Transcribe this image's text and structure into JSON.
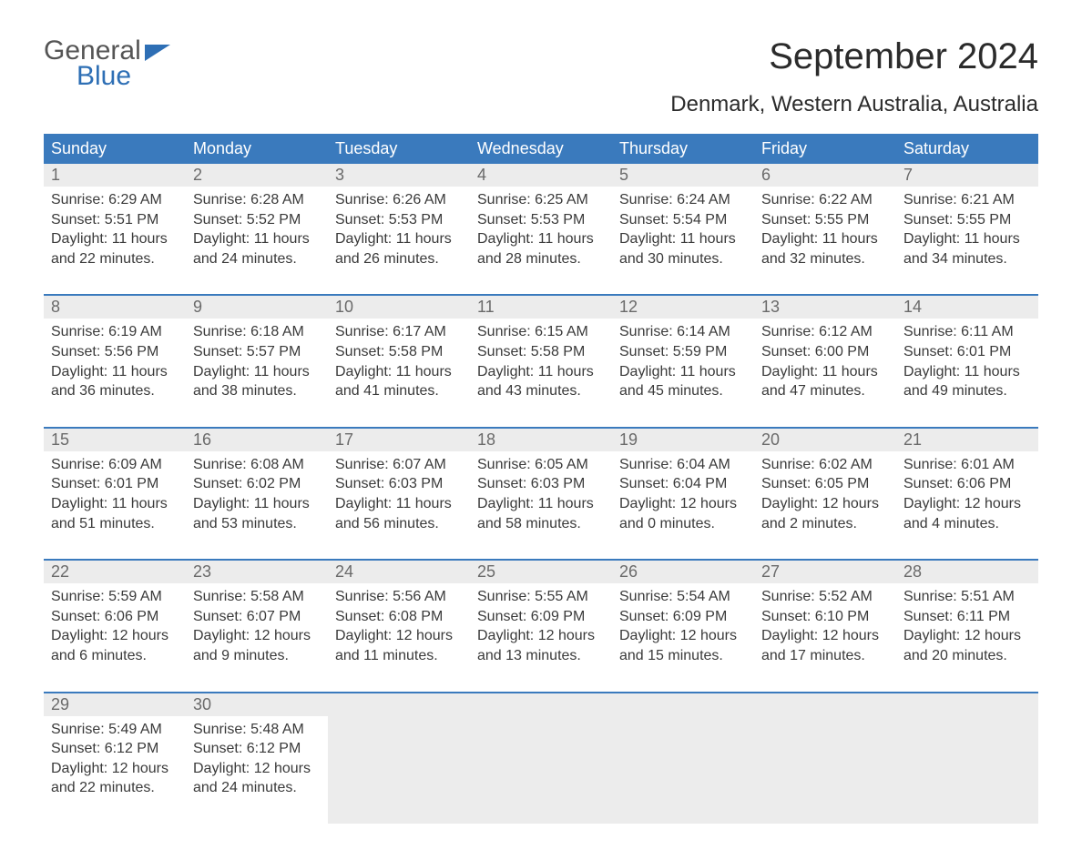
{
  "logo": {
    "word_general": "General",
    "word_blue": "Blue"
  },
  "title": "September 2024",
  "location": "Denmark, Western Australia, Australia",
  "colors": {
    "header_bg": "#3a7abd",
    "header_text": "#ffffff",
    "daynum_bg": "#ececec",
    "daynum_text": "#6a6a6a",
    "body_text": "#3a3a3a",
    "logo_blue": "#2e6fb5",
    "logo_gray": "#555555",
    "page_bg": "#ffffff",
    "week_sep": "#3a7abd"
  },
  "typography": {
    "title_fontsize": 40,
    "location_fontsize": 24,
    "dayheader_fontsize": 18,
    "daynum_fontsize": 18,
    "cell_fontsize": 16
  },
  "day_headers": [
    "Sunday",
    "Monday",
    "Tuesday",
    "Wednesday",
    "Thursday",
    "Friday",
    "Saturday"
  ],
  "weeks": [
    [
      {
        "n": "1",
        "sr": "Sunrise: 6:29 AM",
        "ss": "Sunset: 5:51 PM",
        "d1": "Daylight: 11 hours",
        "d2": "and 22 minutes."
      },
      {
        "n": "2",
        "sr": "Sunrise: 6:28 AM",
        "ss": "Sunset: 5:52 PM",
        "d1": "Daylight: 11 hours",
        "d2": "and 24 minutes."
      },
      {
        "n": "3",
        "sr": "Sunrise: 6:26 AM",
        "ss": "Sunset: 5:53 PM",
        "d1": "Daylight: 11 hours",
        "d2": "and 26 minutes."
      },
      {
        "n": "4",
        "sr": "Sunrise: 6:25 AM",
        "ss": "Sunset: 5:53 PM",
        "d1": "Daylight: 11 hours",
        "d2": "and 28 minutes."
      },
      {
        "n": "5",
        "sr": "Sunrise: 6:24 AM",
        "ss": "Sunset: 5:54 PM",
        "d1": "Daylight: 11 hours",
        "d2": "and 30 minutes."
      },
      {
        "n": "6",
        "sr": "Sunrise: 6:22 AM",
        "ss": "Sunset: 5:55 PM",
        "d1": "Daylight: 11 hours",
        "d2": "and 32 minutes."
      },
      {
        "n": "7",
        "sr": "Sunrise: 6:21 AM",
        "ss": "Sunset: 5:55 PM",
        "d1": "Daylight: 11 hours",
        "d2": "and 34 minutes."
      }
    ],
    [
      {
        "n": "8",
        "sr": "Sunrise: 6:19 AM",
        "ss": "Sunset: 5:56 PM",
        "d1": "Daylight: 11 hours",
        "d2": "and 36 minutes."
      },
      {
        "n": "9",
        "sr": "Sunrise: 6:18 AM",
        "ss": "Sunset: 5:57 PM",
        "d1": "Daylight: 11 hours",
        "d2": "and 38 minutes."
      },
      {
        "n": "10",
        "sr": "Sunrise: 6:17 AM",
        "ss": "Sunset: 5:58 PM",
        "d1": "Daylight: 11 hours",
        "d2": "and 41 minutes."
      },
      {
        "n": "11",
        "sr": "Sunrise: 6:15 AM",
        "ss": "Sunset: 5:58 PM",
        "d1": "Daylight: 11 hours",
        "d2": "and 43 minutes."
      },
      {
        "n": "12",
        "sr": "Sunrise: 6:14 AM",
        "ss": "Sunset: 5:59 PM",
        "d1": "Daylight: 11 hours",
        "d2": "and 45 minutes."
      },
      {
        "n": "13",
        "sr": "Sunrise: 6:12 AM",
        "ss": "Sunset: 6:00 PM",
        "d1": "Daylight: 11 hours",
        "d2": "and 47 minutes."
      },
      {
        "n": "14",
        "sr": "Sunrise: 6:11 AM",
        "ss": "Sunset: 6:01 PM",
        "d1": "Daylight: 11 hours",
        "d2": "and 49 minutes."
      }
    ],
    [
      {
        "n": "15",
        "sr": "Sunrise: 6:09 AM",
        "ss": "Sunset: 6:01 PM",
        "d1": "Daylight: 11 hours",
        "d2": "and 51 minutes."
      },
      {
        "n": "16",
        "sr": "Sunrise: 6:08 AM",
        "ss": "Sunset: 6:02 PM",
        "d1": "Daylight: 11 hours",
        "d2": "and 53 minutes."
      },
      {
        "n": "17",
        "sr": "Sunrise: 6:07 AM",
        "ss": "Sunset: 6:03 PM",
        "d1": "Daylight: 11 hours",
        "d2": "and 56 minutes."
      },
      {
        "n": "18",
        "sr": "Sunrise: 6:05 AM",
        "ss": "Sunset: 6:03 PM",
        "d1": "Daylight: 11 hours",
        "d2": "and 58 minutes."
      },
      {
        "n": "19",
        "sr": "Sunrise: 6:04 AM",
        "ss": "Sunset: 6:04 PM",
        "d1": "Daylight: 12 hours",
        "d2": "and 0 minutes."
      },
      {
        "n": "20",
        "sr": "Sunrise: 6:02 AM",
        "ss": "Sunset: 6:05 PM",
        "d1": "Daylight: 12 hours",
        "d2": "and 2 minutes."
      },
      {
        "n": "21",
        "sr": "Sunrise: 6:01 AM",
        "ss": "Sunset: 6:06 PM",
        "d1": "Daylight: 12 hours",
        "d2": "and 4 minutes."
      }
    ],
    [
      {
        "n": "22",
        "sr": "Sunrise: 5:59 AM",
        "ss": "Sunset: 6:06 PM",
        "d1": "Daylight: 12 hours",
        "d2": "and 6 minutes."
      },
      {
        "n": "23",
        "sr": "Sunrise: 5:58 AM",
        "ss": "Sunset: 6:07 PM",
        "d1": "Daylight: 12 hours",
        "d2": "and 9 minutes."
      },
      {
        "n": "24",
        "sr": "Sunrise: 5:56 AM",
        "ss": "Sunset: 6:08 PM",
        "d1": "Daylight: 12 hours",
        "d2": "and 11 minutes."
      },
      {
        "n": "25",
        "sr": "Sunrise: 5:55 AM",
        "ss": "Sunset: 6:09 PM",
        "d1": "Daylight: 12 hours",
        "d2": "and 13 minutes."
      },
      {
        "n": "26",
        "sr": "Sunrise: 5:54 AM",
        "ss": "Sunset: 6:09 PM",
        "d1": "Daylight: 12 hours",
        "d2": "and 15 minutes."
      },
      {
        "n": "27",
        "sr": "Sunrise: 5:52 AM",
        "ss": "Sunset: 6:10 PM",
        "d1": "Daylight: 12 hours",
        "d2": "and 17 minutes."
      },
      {
        "n": "28",
        "sr": "Sunrise: 5:51 AM",
        "ss": "Sunset: 6:11 PM",
        "d1": "Daylight: 12 hours",
        "d2": "and 20 minutes."
      }
    ],
    [
      {
        "n": "29",
        "sr": "Sunrise: 5:49 AM",
        "ss": "Sunset: 6:12 PM",
        "d1": "Daylight: 12 hours",
        "d2": "and 22 minutes."
      },
      {
        "n": "30",
        "sr": "Sunrise: 5:48 AM",
        "ss": "Sunset: 6:12 PM",
        "d1": "Daylight: 12 hours",
        "d2": "and 24 minutes."
      },
      null,
      null,
      null,
      null,
      null
    ]
  ]
}
